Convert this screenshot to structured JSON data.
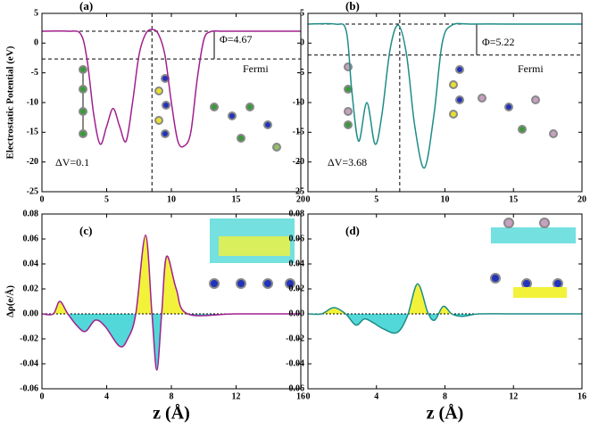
{
  "chart_data": [
    {
      "type": "line",
      "panel_label": "(a)",
      "ylabel": "Electrostatic Potential (eV)",
      "color": "#a0208f",
      "x": [
        0,
        2,
        3,
        3.5,
        4,
        4.5,
        5,
        5.5,
        6,
        6.5,
        7,
        7.5,
        8,
        8.5,
        9,
        9.5,
        10,
        10.5,
        11,
        11.5,
        12,
        12.5,
        13,
        14,
        16,
        18,
        20
      ],
      "values": [
        2,
        2,
        1.5,
        -3,
        -12,
        -17,
        -14,
        -11,
        -14,
        -16.5,
        -10,
        -2,
        1.5,
        2.3,
        1.5,
        -2,
        -10,
        -16.5,
        -17.3,
        -15,
        -6,
        0.5,
        1.9,
        2,
        2,
        2,
        2
      ],
      "xlim": [
        0,
        20
      ],
      "xticks": [
        0,
        5,
        10,
        15,
        20
      ],
      "ylim": [
        -25,
        5
      ],
      "yticks": [
        5,
        0,
        -5,
        -10,
        -15,
        -20,
        -25
      ],
      "vacuum_level": 2,
      "fermi_level": -2.67,
      "interface_z": 8.5,
      "annotations": [
        "Φ=4.67",
        "Fermi",
        "ΔV=0.1"
      ]
    },
    {
      "type": "line",
      "panel_label": "(b)",
      "color": "#1e8c87",
      "x": [
        0,
        2,
        2.8,
        3.2,
        3.7,
        4.3,
        4.9,
        5.4,
        6,
        6.6,
        7.2,
        7.8,
        8.5,
        9.2,
        9.8,
        10.5,
        12,
        16,
        20
      ],
      "values": [
        3.2,
        3.2,
        2,
        -8,
        -16.5,
        -10,
        -17,
        -12,
        -1,
        3,
        -2,
        -14,
        -21,
        -12,
        0,
        3,
        3.2,
        3.2,
        3.2
      ],
      "xlim": [
        0,
        20
      ],
      "xticks": [
        0,
        5,
        10,
        15,
        20
      ],
      "ylim": [
        -25,
        5
      ],
      "yticks": [
        5,
        0,
        -5,
        -10,
        -15,
        -20,
        -25
      ],
      "vacuum_level": 3.2,
      "fermi_level": -2.02,
      "interface_z": 6.7,
      "annotations": [
        "Φ=5.22",
        "Fermi",
        "ΔV=3.68"
      ]
    },
    {
      "type": "area",
      "panel_label": "(c)",
      "ylabel": "Δρ(e/Å)",
      "xlabel": "z (Å)",
      "color": "#a0208f",
      "positive_color": "#f2f23a",
      "negative_color": "#52d8d8",
      "x": [
        0,
        0.7,
        1.1,
        1.6,
        2.2,
        2.7,
        3.3,
        3.9,
        4.8,
        5.3,
        5.8,
        6.4,
        6.8,
        7.1,
        7.4,
        7.7,
        8.3,
        9,
        12,
        16
      ],
      "values": [
        0,
        0,
        0.01,
        0,
        -0.01,
        -0.014,
        -0.005,
        -0.01,
        -0.026,
        -0.02,
        0,
        0.063,
        0,
        -0.045,
        0,
        0.046,
        0.02,
        0,
        0,
        0
      ],
      "xlim": [
        0,
        16
      ],
      "xticks": [
        0,
        4,
        8,
        12,
        16
      ],
      "ylim": [
        -0.06,
        0.08
      ],
      "yticks": [
        0.08,
        0.06,
        0.04,
        0.02,
        {
          "value": 0,
          "label": "0.00"
        },
        -0.02,
        -0.04,
        -0.06
      ]
    },
    {
      "type": "area",
      "panel_label": "(d)",
      "xlabel": "z (Å)",
      "color": "#1e8c87",
      "positive_color": "#f2f23a",
      "negative_color": "#52d8d8",
      "x": [
        0,
        0.8,
        1.5,
        2.2,
        2.8,
        3.3,
        3.8,
        4.4,
        5.2,
        5.8,
        6.4,
        7.0,
        7.4,
        7.9,
        8.4,
        9,
        10,
        12,
        16
      ],
      "values": [
        0,
        0,
        0.005,
        0,
        -0.009,
        -0.004,
        -0.007,
        -0.012,
        -0.015,
        -0.002,
        0.024,
        0.001,
        -0.005,
        0.006,
        0,
        -0.002,
        0,
        0,
        0
      ],
      "xlim": [
        0,
        16
      ],
      "xticks": [
        0,
        4,
        8,
        12,
        16
      ],
      "ylim": [
        -0.06,
        0.08
      ],
      "yticks": [
        0.08,
        0.06,
        0.04,
        0.02,
        {
          "value": 0,
          "label": "0.00"
        },
        -0.02,
        -0.04,
        -0.06
      ]
    }
  ]
}
